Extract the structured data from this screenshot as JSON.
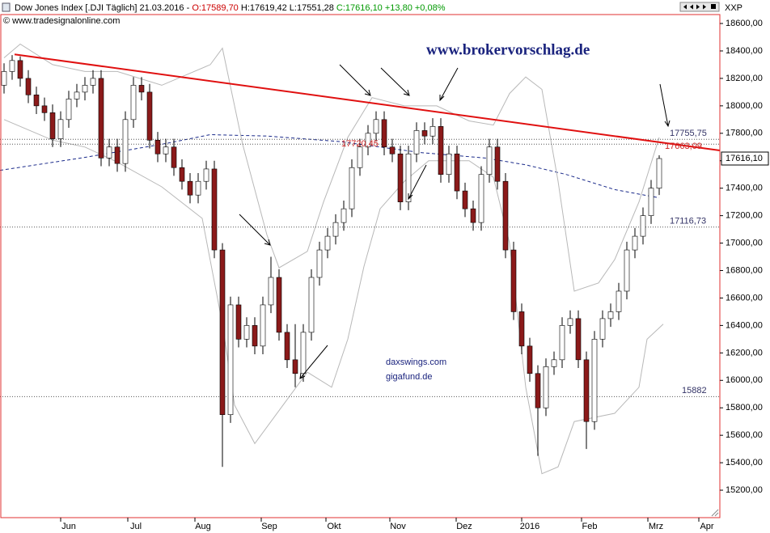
{
  "chart_data": {
    "type": "candlestick",
    "title_parts": [
      {
        "text": "Dow Jones Index [.DJI  Täglich] 21.03.2016 - ",
        "color": "#000000"
      },
      {
        "text": "O:17589,70",
        "color": "#cc0000"
      },
      {
        "text": " H:17619,42 L:17551,28 ",
        "color": "#000000"
      },
      {
        "text": "C:17616,10 +13,80 +0,08%",
        "color": "#009900"
      }
    ],
    "subtitle": "© www.tradesignalonline.com",
    "axis_code": "XXP",
    "watermark": "www.brokervorschlag.de",
    "notes": [
      "daxswings.com",
      "gigafund.de"
    ],
    "up_color": "#ffffff",
    "down_color": "#8b1a1a",
    "xlim": [
      -0.5,
      88.5
    ],
    "xticks": [
      {
        "value": 8,
        "label": "Jun"
      },
      {
        "value": 16.3,
        "label": "Jul"
      },
      {
        "value": 24.6,
        "label": "Aug"
      },
      {
        "value": 32.8,
        "label": "Sep"
      },
      {
        "value": 40.8,
        "label": "Okt"
      },
      {
        "value": 48.7,
        "label": "Nov"
      },
      {
        "value": 56.9,
        "label": "Dez"
      },
      {
        "value": 65,
        "label": "2016"
      },
      {
        "value": 72.4,
        "label": "Feb"
      },
      {
        "value": 80.6,
        "label": "Mrz"
      },
      {
        "value": 86.9,
        "label": "Apr"
      }
    ],
    "ylim": [
      15000,
      18665
    ],
    "yticks": [
      {
        "value": 18600,
        "label": "18600,00"
      },
      {
        "value": 18400,
        "label": "18400,00"
      },
      {
        "value": 18200,
        "label": "18200,00"
      },
      {
        "value": 18000,
        "label": "18000,00"
      },
      {
        "value": 17800,
        "label": "17800,00"
      },
      {
        "value": 17600,
        "label": "17600,00"
      },
      {
        "value": 17400,
        "label": "17400,00"
      },
      {
        "value": 17200,
        "label": "17200,00"
      },
      {
        "value": 17000,
        "label": "17000,00"
      },
      {
        "value": 16800,
        "label": "16800,00"
      },
      {
        "value": 16600,
        "label": "16600,00"
      },
      {
        "value": 16400,
        "label": "16400,00"
      },
      {
        "value": 16200,
        "label": "16200,00"
      },
      {
        "value": 16000,
        "label": "16000,00"
      },
      {
        "value": 15800,
        "label": "15800,00"
      },
      {
        "value": 15600,
        "label": "15600,00"
      },
      {
        "value": 15400,
        "label": "15400,00"
      },
      {
        "value": 15200,
        "label": "15200,00"
      }
    ],
    "open": [
      18150,
      18250,
      18330,
      18200,
      18080,
      18000,
      17950,
      17760,
      17900,
      18050,
      18100,
      18150,
      18200,
      17620,
      17700,
      17580,
      17900,
      18150,
      18100,
      17750,
      17650,
      17700,
      17550,
      17450,
      17350,
      17450,
      17540,
      16950,
      15750,
      16550,
      16300,
      16400,
      16250,
      16550,
      16750,
      16350,
      16150,
      16050,
      16350,
      16750,
      16950,
      17050,
      17150,
      17250,
      17550,
      17700,
      17800,
      17900,
      17700,
      17650,
      17300,
      17650,
      17820,
      17780,
      17850,
      17500,
      17650,
      17380,
      17250,
      17150,
      17500,
      17700,
      17450,
      16950,
      16500,
      16250,
      16050,
      15800,
      16100,
      16150,
      16400,
      16450,
      16150,
      15700,
      16300,
      16450,
      16500,
      16650,
      16950,
      17050,
      17200,
      17400
    ],
    "high": [
      18310,
      18370,
      18360,
      18260,
      18140,
      18060,
      18010,
      17960,
      18110,
      18160,
      18210,
      18260,
      18260,
      17760,
      17760,
      17960,
      18210,
      18210,
      18160,
      17810,
      17760,
      17760,
      17610,
      17510,
      17510,
      17600,
      17600,
      17000,
      16610,
      16610,
      16460,
      16460,
      16610,
      16900,
      16810,
      16410,
      16410,
      16410,
      16810,
      17010,
      17110,
      17210,
      17310,
      17610,
      17760,
      17860,
      17960,
      17960,
      17760,
      17710,
      17710,
      17880,
      17880,
      17910,
      17910,
      17710,
      17710,
      17440,
      17310,
      17560,
      17760,
      17760,
      17510,
      17010,
      16560,
      16310,
      16110,
      16160,
      16210,
      16460,
      16510,
      16510,
      16210,
      16360,
      16510,
      16560,
      16710,
      17010,
      17110,
      17260,
      17460,
      17640
    ],
    "low": [
      18090,
      18190,
      18140,
      18020,
      17940,
      17890,
      17700,
      17700,
      17840,
      17990,
      18040,
      18090,
      17560,
      17560,
      17520,
      17520,
      17840,
      18040,
      17690,
      17590,
      17590,
      17490,
      17390,
      17290,
      17290,
      17390,
      16890,
      15370,
      15690,
      16240,
      16240,
      16190,
      16190,
      16490,
      16290,
      16090,
      15950,
      15990,
      16290,
      16690,
      16890,
      16990,
      17090,
      17190,
      17490,
      17640,
      17740,
      17640,
      17590,
      17240,
      17240,
      17590,
      17720,
      17720,
      17440,
      17440,
      17320,
      17190,
      17090,
      17090,
      17440,
      17390,
      16890,
      16440,
      16190,
      15990,
      15450,
      15740,
      16040,
      16090,
      16340,
      16090,
      15500,
      15640,
      16240,
      16390,
      16440,
      16590,
      16890,
      16990,
      17140,
      17350
    ],
    "close": [
      18250,
      18330,
      18200,
      18080,
      18000,
      17950,
      17760,
      17900,
      18050,
      18100,
      18150,
      18200,
      17620,
      17700,
      17580,
      17900,
      18150,
      18100,
      17750,
      17650,
      17700,
      17550,
      17450,
      17350,
      17450,
      17540,
      16950,
      15750,
      16550,
      16300,
      16400,
      16250,
      16550,
      16750,
      16350,
      16150,
      16050,
      16350,
      16750,
      16950,
      17050,
      17150,
      17250,
      17550,
      17700,
      17800,
      17900,
      17700,
      17650,
      17300,
      17650,
      17820,
      17780,
      17850,
      17500,
      17650,
      17380,
      17250,
      17150,
      17500,
      17700,
      17450,
      16950,
      16500,
      16250,
      16050,
      15800,
      16100,
      16150,
      16400,
      16450,
      16150,
      15700,
      16300,
      16450,
      16500,
      16650,
      16950,
      17050,
      17200,
      17400,
      17616.1
    ],
    "last": {
      "value": 17616.1,
      "label": "17616,10"
    },
    "overlays": [
      {
        "x": [
          -0.5,
          9.5,
          19.5,
          25.5,
          32.5,
          41.5,
          51.5,
          59.5,
          64.5,
          69.5,
          75.5,
          81
        ],
        "values": [
          17530,
          17620,
          17720,
          17790,
          17780,
          17740,
          17660,
          17620,
          17570,
          17500,
          17390,
          17330
        ],
        "color": "#1a2a8a",
        "dashed": true
      },
      {
        "x": [
          0,
          2,
          6,
          10,
          14,
          19.5,
          25.5,
          27,
          29.5,
          32.5,
          34,
          37.5,
          39.5,
          42.5,
          45.5,
          49.5,
          53.5,
          57.5,
          60.5,
          62.5,
          64.5,
          66.5,
          68.5,
          70.5,
          73.5,
          75.5,
          78.5,
          81
        ],
        "values": [
          18350,
          18450,
          18300,
          18250,
          18250,
          18150,
          18300,
          18420,
          17720,
          17060,
          16820,
          16940,
          17300,
          17770,
          18060,
          18000,
          18000,
          17890,
          17860,
          18090,
          18210,
          18120,
          17450,
          16650,
          16710,
          16880,
          17300,
          17770
        ],
        "color": "#b8b8b8",
        "dashed": false
      },
      {
        "x": [
          0,
          6,
          10,
          14,
          19.5,
          24.5,
          27,
          28.5,
          31,
          34.5,
          37.5,
          40.5,
          42.5,
          44.5,
          46.5,
          49.5,
          52.5,
          57.5,
          60.5,
          62.5,
          64.5,
          66.5,
          68.5,
          70.5,
          75.5,
          78.5,
          79.5,
          81.5
        ],
        "values": [
          17900,
          17750,
          17700,
          17590,
          17410,
          17180,
          16410,
          15820,
          15540,
          15820,
          16060,
          15950,
          16300,
          16830,
          17250,
          17450,
          17600,
          17600,
          17480,
          17000,
          15950,
          15320,
          15370,
          15700,
          15760,
          15950,
          16300,
          16410
        ],
        "color": "#b8b8b8",
        "dashed": false
      }
    ],
    "trendline": {
      "x": [
        1.3,
        88.5
      ],
      "values": [
        18375,
        17675
      ],
      "color": "#e01010"
    },
    "levels": [
      {
        "value": 17755.75,
        "label": "17755,75",
        "color": "#333366",
        "line": true
      },
      {
        "value": 17720.45,
        "label": "17720,45",
        "color": "#cc2222",
        "line": true
      },
      {
        "value": 17663.09,
        "label": "17663,09",
        "color": "#cc2222",
        "line": false
      },
      {
        "value": 17116.73,
        "label": "17116,73",
        "color": "#333366",
        "line": true
      },
      {
        "value": 15882,
        "label": "15882",
        "color": "#333366",
        "line": true
      }
    ]
  }
}
